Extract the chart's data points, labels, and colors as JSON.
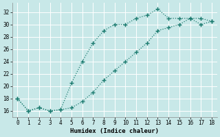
{
  "xlabel": "Humidex (Indice chaleur)",
  "ylabel": "",
  "xlim": [
    -0.5,
    18.5
  ],
  "ylim": [
    15,
    33.5
  ],
  "yticks": [
    16,
    18,
    20,
    22,
    24,
    26,
    28,
    30,
    32
  ],
  "xticks": [
    0,
    1,
    2,
    3,
    4,
    5,
    6,
    7,
    8,
    9,
    10,
    11,
    12,
    13,
    14,
    15,
    16,
    17,
    18
  ],
  "line_color": "#1a7a6e",
  "bg_color": "#c8e8e8",
  "grid_color": "#ffffff",
  "line1_x": [
    0,
    1,
    2,
    3,
    4,
    5,
    6,
    7,
    8,
    9,
    10,
    11,
    12,
    13,
    14,
    15,
    16,
    17,
    18
  ],
  "line1_y": [
    18,
    16,
    16.5,
    16,
    16.2,
    20.5,
    24,
    27,
    29,
    30,
    30,
    31,
    31.5,
    32.5,
    31,
    31,
    31,
    31,
    30.5
  ],
  "line2_x": [
    0,
    1,
    2,
    3,
    4,
    5,
    6,
    7,
    8,
    9,
    10,
    11,
    12,
    13,
    14,
    15,
    16,
    17,
    18
  ],
  "line2_y": [
    18,
    16,
    16.5,
    16,
    16.2,
    16.5,
    17.5,
    19,
    21,
    22.5,
    24,
    25.5,
    27,
    29,
    29.5,
    30,
    31,
    30,
    30.5
  ]
}
